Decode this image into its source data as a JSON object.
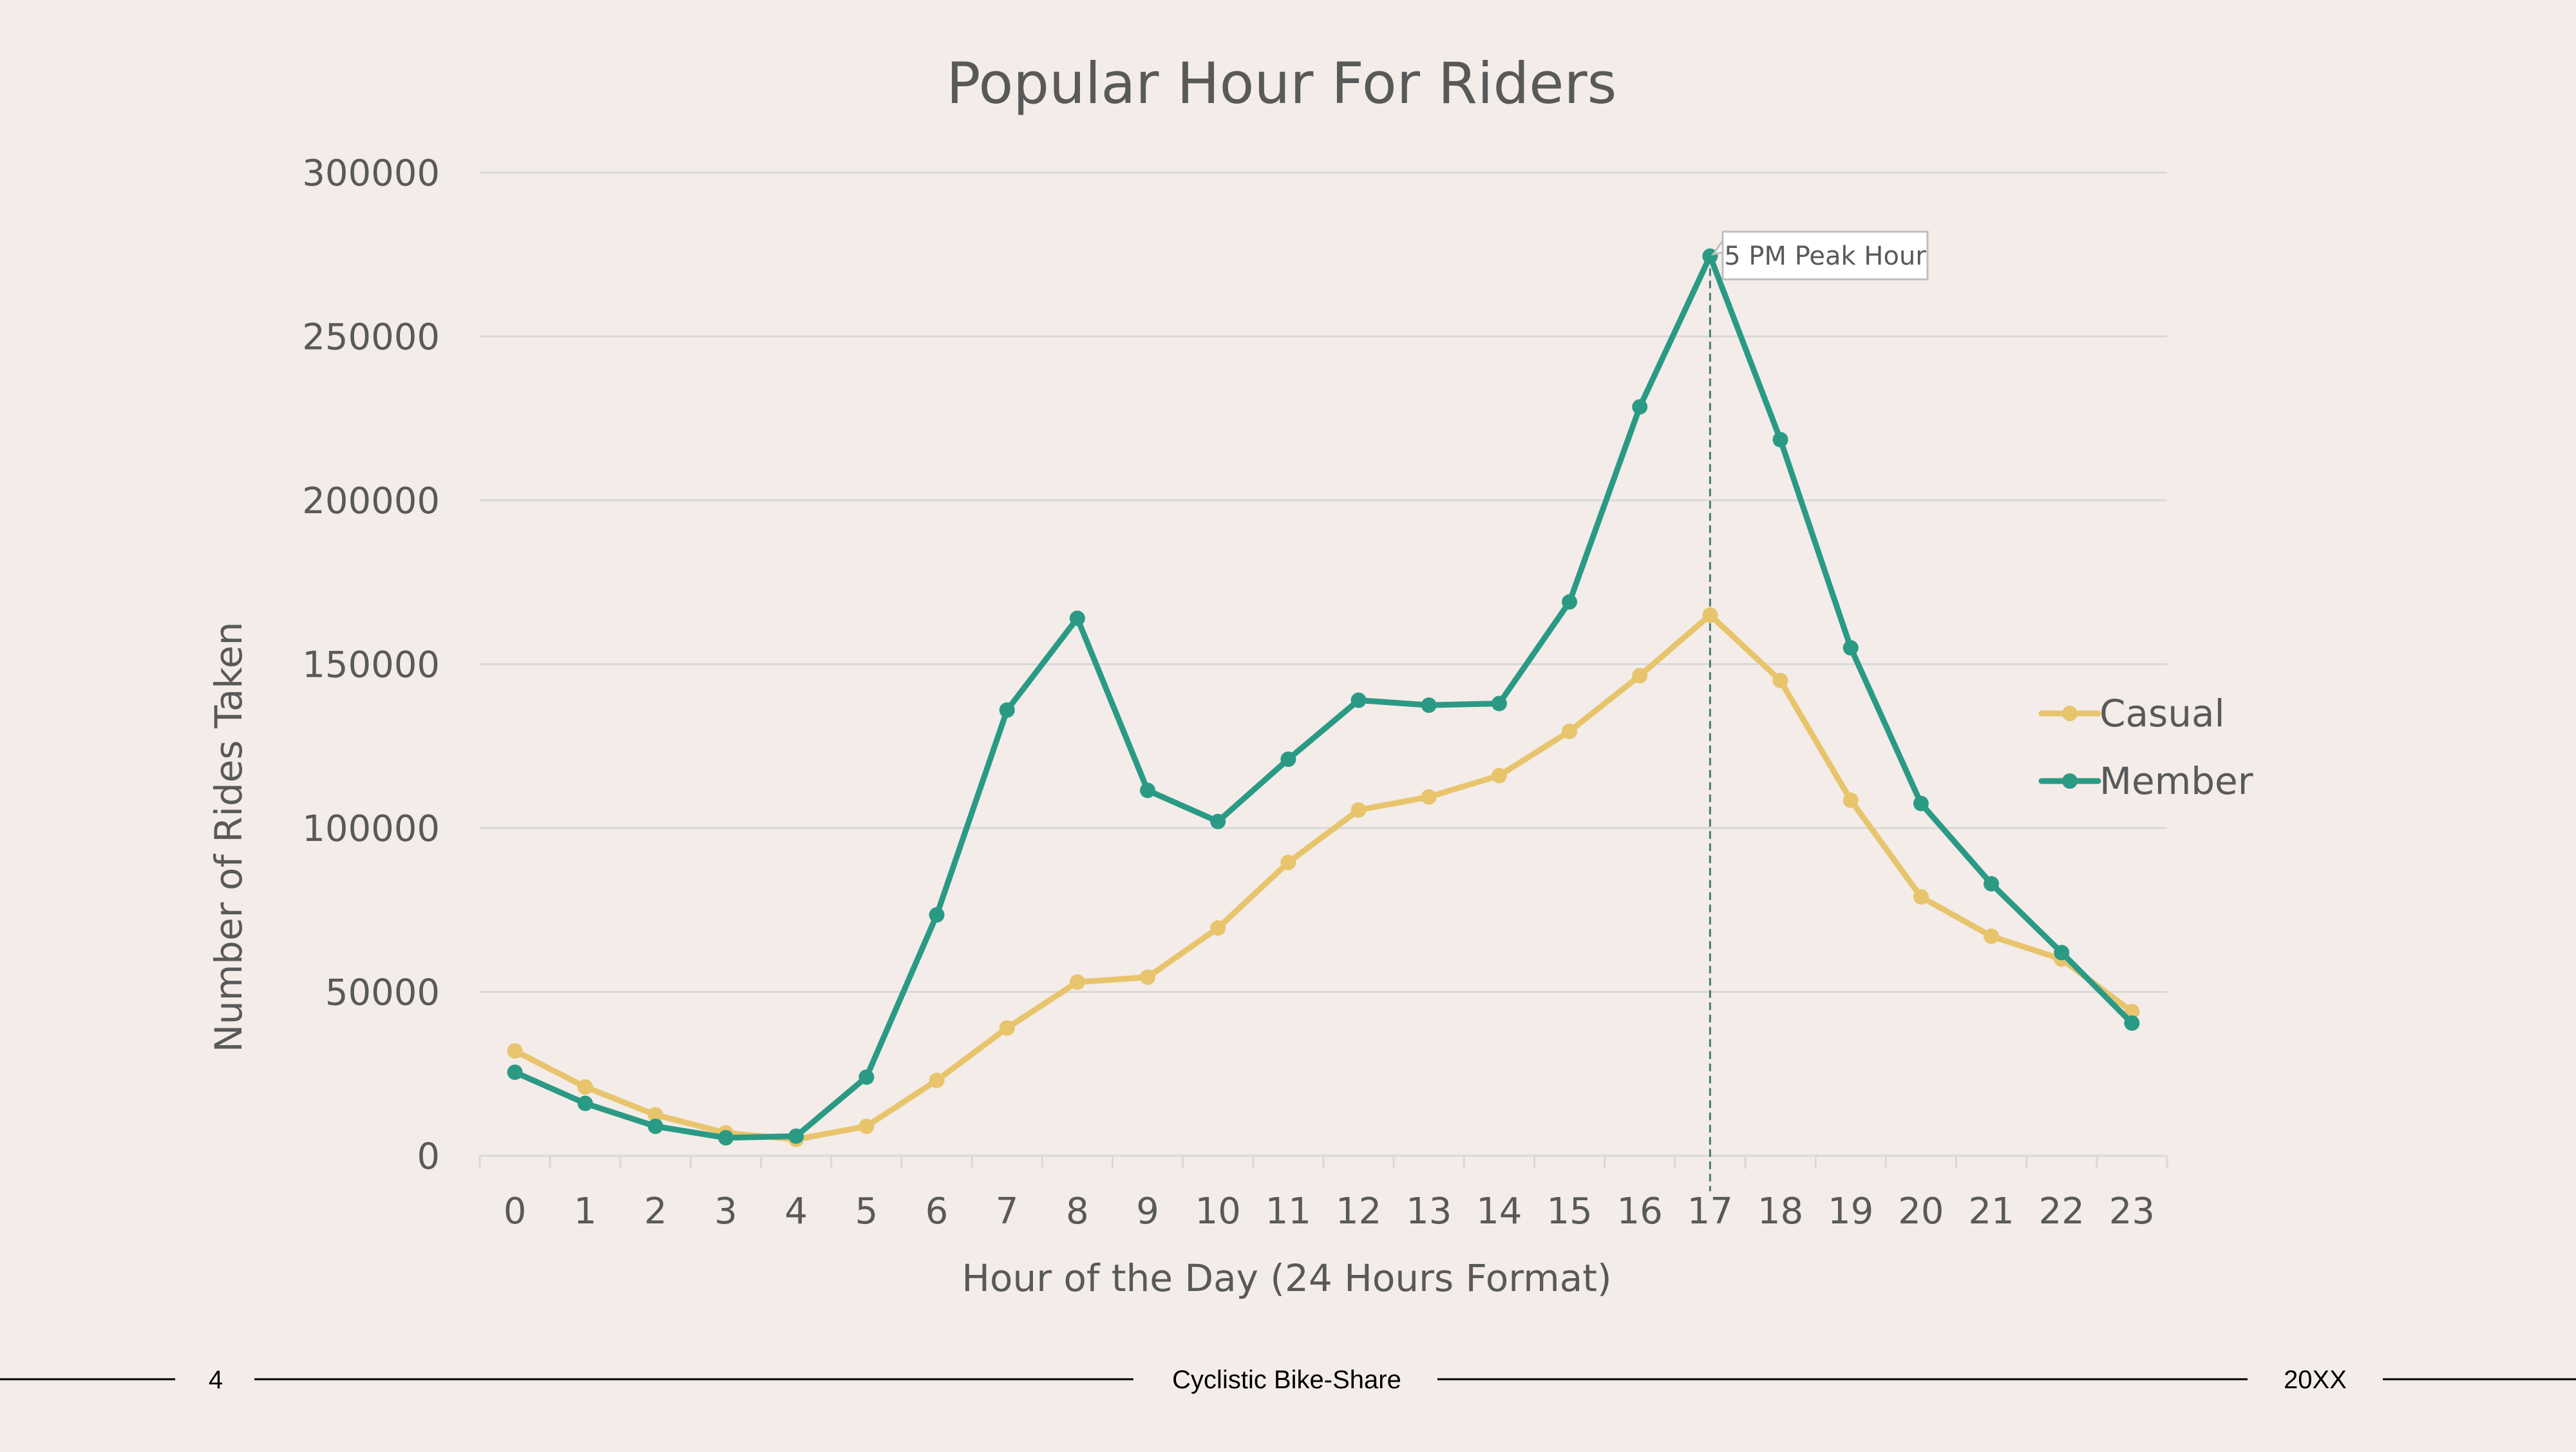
{
  "slide": {
    "page_number": "4",
    "footer_title": "Cyclistic Bike-Share",
    "year": "20XX"
  },
  "colors": {
    "background": "#f3ece8",
    "text": "#595959",
    "grid": "#d9d9d9",
    "casual": "#e8c46c",
    "member": "#2a9a85",
    "footer_line": "#000000"
  },
  "chart_data": {
    "type": "line",
    "title": "Popular Hour For Riders",
    "xlabel": "Hour of the Day (24 Hours Format)",
    "ylabel": "Number of Rides Taken",
    "ylim": [
      0,
      300000
    ],
    "yticks": [
      0,
      50000,
      100000,
      150000,
      200000,
      250000,
      300000
    ],
    "ytick_labels": [
      "0",
      "50000",
      "100000",
      "150000",
      "200000",
      "250000",
      "300000"
    ],
    "grid": true,
    "legend": "right",
    "categories": [
      "0",
      "1",
      "2",
      "3",
      "4",
      "5",
      "6",
      "7",
      "8",
      "9",
      "10",
      "11",
      "12",
      "13",
      "14",
      "15",
      "16",
      "17",
      "18",
      "19",
      "20",
      "21",
      "22",
      "23"
    ],
    "series": [
      {
        "name": "Casual",
        "color": "#e8c46c",
        "values": [
          32000,
          21000,
          12500,
          7000,
          5000,
          9000,
          23000,
          39000,
          53000,
          54500,
          69500,
          89500,
          105500,
          109500,
          116000,
          129500,
          146500,
          165000,
          145000,
          108500,
          79000,
          67000,
          60000,
          44000
        ]
      },
      {
        "name": "Member",
        "color": "#2a9a85",
        "values": [
          25500,
          16000,
          9000,
          5500,
          6000,
          24000,
          73500,
          136000,
          164000,
          111500,
          102000,
          121000,
          139000,
          137500,
          138000,
          169000,
          228500,
          274500,
          218500,
          155000,
          107500,
          83000,
          62000,
          40500
        ]
      }
    ],
    "annotation": {
      "text": "5 PM Peak Hour",
      "category": "17",
      "value": 274500
    }
  }
}
